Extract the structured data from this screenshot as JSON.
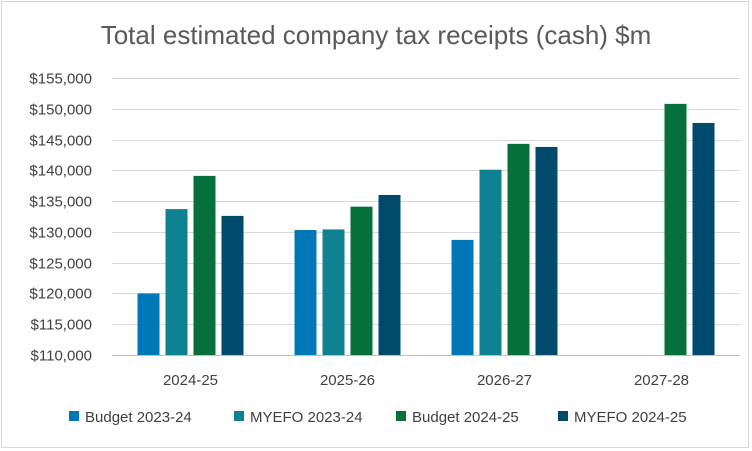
{
  "chart_data": {
    "type": "bar",
    "title": "Total estimated company tax receipts (cash) $m",
    "xlabel": "",
    "ylabel": "",
    "categories": [
      "2024-25",
      "2025-26",
      "2026-27",
      "2027-28"
    ],
    "ylim": [
      110000,
      155000
    ],
    "yticks": [
      110000,
      115000,
      120000,
      125000,
      130000,
      135000,
      140000,
      145000,
      150000,
      155000
    ],
    "ytick_labels": [
      "$110,000",
      "$115,000",
      "$120,000",
      "$125,000",
      "$130,000",
      "$135,000",
      "$140,000",
      "$145,000",
      "$150,000",
      "$155,000"
    ],
    "grid": true,
    "legend_position": "bottom",
    "series": [
      {
        "name": "Budget 2023-24",
        "color": "#0077b6",
        "values": [
          120000,
          130300,
          128700,
          null
        ]
      },
      {
        "name": "MYEFO 2023-24",
        "color": "#0e8291",
        "values": [
          133700,
          130400,
          140100,
          null
        ]
      },
      {
        "name": "Budget 2024-25",
        "color": "#05703b",
        "values": [
          139100,
          134100,
          144300,
          150800
        ]
      },
      {
        "name": "MYEFO 2024-25",
        "color": "#004a6b",
        "values": [
          132600,
          136000,
          143800,
          147700
        ]
      }
    ]
  }
}
